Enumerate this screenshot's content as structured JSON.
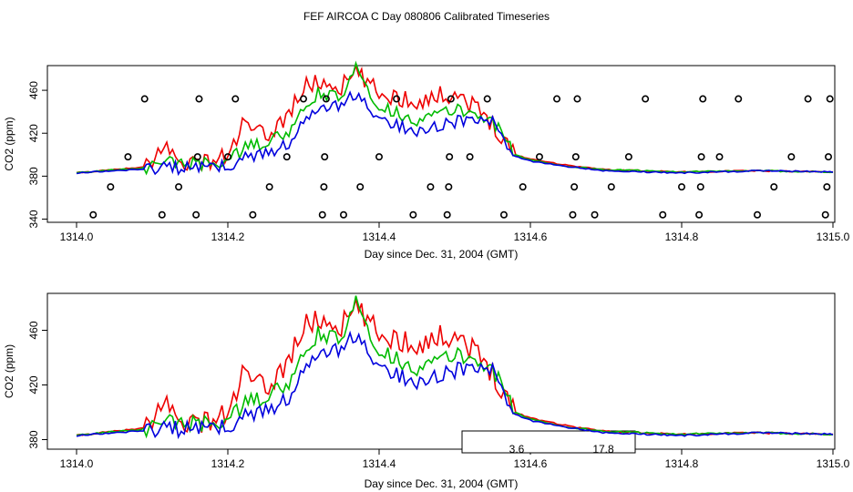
{
  "title": "FEF AIRCOA C  Day 080806  Calibrated Timeseries",
  "colors": {
    "red": "#ee0000",
    "green": "#00bb00",
    "blue": "#0000dd",
    "frame": "#000000"
  },
  "chart_data": [
    {
      "type": "line",
      "name": "top-panel",
      "xlabel": "Day since Dec. 31, 2004 (GMT)",
      "ylabel": "CO2 (ppm)",
      "xlim": [
        1314.0,
        1315.0
      ],
      "ylim": [
        337,
        483
      ],
      "xticks": [
        "1314.0",
        "1314.2",
        "1314.4",
        "1314.6",
        "1314.8",
        "1315.0"
      ],
      "xtick_values": [
        1314.0,
        1314.2,
        1314.4,
        1314.6,
        1314.8,
        1315.0
      ],
      "yticks": [
        "340",
        "380",
        "420",
        "460"
      ],
      "ytick_values": [
        340,
        380,
        420,
        460
      ],
      "x": [
        1314.0,
        1314.05,
        1314.1,
        1314.115,
        1314.13,
        1314.16,
        1314.2,
        1314.22,
        1314.25,
        1314.28,
        1314.3,
        1314.32,
        1314.35,
        1314.37,
        1314.4,
        1314.45,
        1314.5,
        1314.52,
        1314.55,
        1314.58,
        1314.6,
        1314.65,
        1314.7,
        1314.8,
        1314.9,
        1315.0
      ],
      "series": [
        {
          "name": "red",
          "color": "#ee0000",
          "values": [
            383,
            386,
            389,
            412,
            396,
            392,
            398,
            428,
            416,
            438,
            462,
            468,
            463,
            476,
            457,
            450,
            458,
            448,
            430,
            400,
            396,
            390,
            386,
            384,
            385,
            384
          ]
        },
        {
          "name": "green",
          "color": "#00bb00",
          "values": [
            383,
            386,
            388,
            395,
            393,
            391,
            394,
            405,
            412,
            420,
            440,
            458,
            452,
            481,
            445,
            432,
            442,
            440,
            432,
            400,
            395,
            389,
            386,
            384,
            385,
            384
          ]
        },
        {
          "name": "blue",
          "color": "#0000dd",
          "values": [
            383,
            385,
            387,
            390,
            388,
            387,
            390,
            396,
            402,
            410,
            430,
            440,
            448,
            456,
            432,
            423,
            430,
            433,
            430,
            398,
            394,
            389,
            385,
            383,
            385,
            384
          ]
        }
      ],
      "markers": {
        "name": "flag-points",
        "x": [
          1314.022,
          1314.045,
          1314.068,
          1314.09,
          1314.113,
          1314.135,
          1314.158,
          1314.16,
          1314.162,
          1314.2,
          1314.21,
          1314.233,
          1314.255,
          1314.278,
          1314.3,
          1314.325,
          1314.327,
          1314.328,
          1314.33,
          1314.353,
          1314.375,
          1314.4,
          1314.423,
          1314.445,
          1314.468,
          1314.49,
          1314.492,
          1314.493,
          1314.495,
          1314.52,
          1314.543,
          1314.565,
          1314.59,
          1314.612,
          1314.635,
          1314.656,
          1314.658,
          1314.66,
          1314.662,
          1314.685,
          1314.707,
          1314.73,
          1314.752,
          1314.775,
          1314.8,
          1314.823,
          1314.825,
          1314.826,
          1314.828,
          1314.85,
          1314.875,
          1314.9,
          1314.922,
          1314.945,
          1314.967,
          1314.99,
          1314.992,
          1314.994,
          1314.996
        ],
        "y": [
          344,
          370,
          398,
          452,
          344,
          370,
          344,
          398,
          452,
          398,
          452,
          344,
          370,
          398,
          452,
          344,
          370,
          398,
          452,
          344,
          370,
          398,
          452,
          344,
          370,
          344,
          370,
          398,
          452,
          398,
          452,
          344,
          370,
          398,
          452,
          344,
          370,
          398,
          452,
          344,
          370,
          398,
          452,
          344,
          370,
          344,
          370,
          398,
          452,
          398,
          452,
          344,
          370,
          398,
          452,
          344,
          370,
          398,
          452
        ]
      }
    },
    {
      "type": "line",
      "name": "bottom-panel",
      "xlabel": "Day since Dec. 31, 2004 (GMT)",
      "ylabel": "CO2 (ppm)",
      "xlim": [
        1314.0,
        1315.0
      ],
      "ylim": [
        373,
        487
      ],
      "xticks": [
        "1314.0",
        "1314.2",
        "1314.4",
        "1314.6",
        "1314.8",
        "1315.0"
      ],
      "xtick_values": [
        1314.0,
        1314.2,
        1314.4,
        1314.6,
        1314.8,
        1315.0
      ],
      "yticks": [
        "380",
        "420",
        "460"
      ],
      "ytick_values": [
        380,
        420,
        460
      ],
      "x": [
        1314.0,
        1314.05,
        1314.1,
        1314.115,
        1314.13,
        1314.16,
        1314.2,
        1314.22,
        1314.25,
        1314.28,
        1314.3,
        1314.32,
        1314.35,
        1314.37,
        1314.4,
        1314.45,
        1314.5,
        1314.52,
        1314.55,
        1314.58,
        1314.6,
        1314.65,
        1314.7,
        1314.8,
        1314.9,
        1315.0
      ],
      "series": [
        {
          "name": "red",
          "color": "#ee0000",
          "values": [
            383,
            386,
            389,
            412,
            396,
            392,
            398,
            428,
            416,
            438,
            462,
            468,
            463,
            476,
            457,
            450,
            458,
            448,
            430,
            400,
            396,
            390,
            386,
            384,
            385,
            384
          ]
        },
        {
          "name": "green",
          "color": "#00bb00",
          "values": [
            383,
            386,
            388,
            395,
            393,
            391,
            394,
            405,
            412,
            420,
            440,
            458,
            452,
            481,
            445,
            432,
            442,
            440,
            432,
            400,
            395,
            389,
            386,
            384,
            385,
            384
          ]
        },
        {
          "name": "blue",
          "color": "#0000dd",
          "values": [
            383,
            385,
            387,
            390,
            388,
            387,
            390,
            396,
            402,
            410,
            430,
            440,
            448,
            456,
            432,
            423,
            430,
            433,
            430,
            398,
            394,
            389,
            385,
            383,
            385,
            384
          ]
        }
      ],
      "legend": {
        "placement": "bottom-center",
        "labels": [
          "3.6",
          "17.8"
        ]
      }
    }
  ]
}
